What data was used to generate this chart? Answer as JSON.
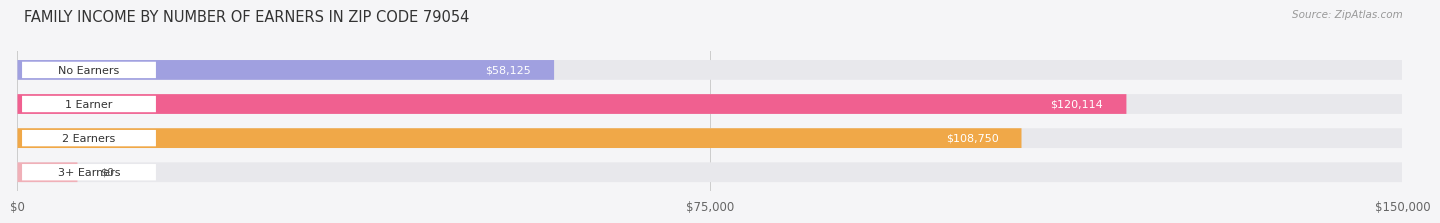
{
  "title": "FAMILY INCOME BY NUMBER OF EARNERS IN ZIP CODE 79054",
  "source": "Source: ZipAtlas.com",
  "categories": [
    "No Earners",
    "1 Earner",
    "2 Earners",
    "3+ Earners"
  ],
  "values": [
    58125,
    120114,
    108750,
    0
  ],
  "bar_colors": [
    "#a0a0e0",
    "#f06090",
    "#f0a848",
    "#f0b0b8"
  ],
  "bar_bg_color": "#e8e8ec",
  "label_values": [
    "$58,125",
    "$120,114",
    "$108,750",
    "$0"
  ],
  "xlim": [
    0,
    150000
  ],
  "xticks": [
    0,
    75000,
    150000
  ],
  "xtick_labels": [
    "$0",
    "$75,000",
    "$150,000"
  ],
  "background_color": "#f5f5f7",
  "title_fontsize": 10.5,
  "label_bg_color": "#ffffff",
  "value_text_color_inside": "#ffffff",
  "value_text_color_outside": "#555555",
  "inside_threshold": 30000
}
